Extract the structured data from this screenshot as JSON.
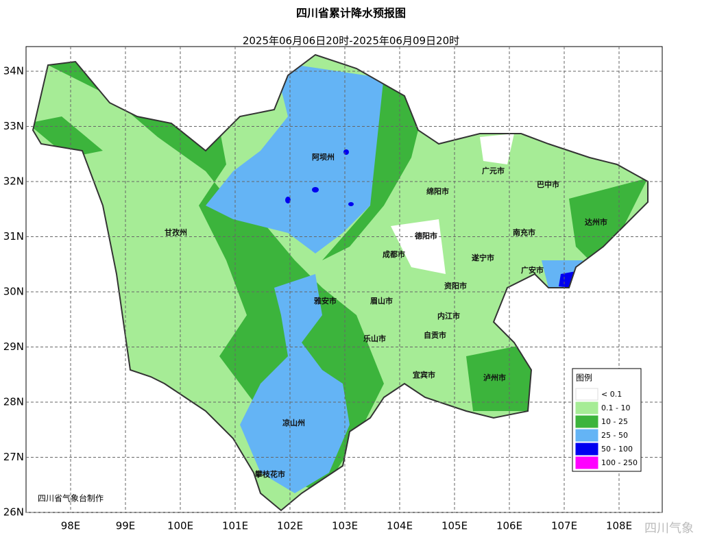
{
  "header": {
    "title": "四川省累计降水预报图",
    "subtitle": "2025年06月06日20时-2025年06月09日20时"
  },
  "map": {
    "xticks": [
      {
        "value": 98,
        "label": "98E"
      },
      {
        "value": 99,
        "label": "99E"
      },
      {
        "value": 100,
        "label": "100E"
      },
      {
        "value": 101,
        "label": "101E"
      },
      {
        "value": 102,
        "label": "102E"
      },
      {
        "value": 103,
        "label": "103E"
      },
      {
        "value": 104,
        "label": "104E"
      },
      {
        "value": 105,
        "label": "105E"
      },
      {
        "value": 106,
        "label": "106E"
      },
      {
        "value": 107,
        "label": "107E"
      },
      {
        "value": 108,
        "label": "108E"
      }
    ],
    "yticks": [
      {
        "value": 34,
        "label": "34N"
      },
      {
        "value": 33,
        "label": "33N"
      },
      {
        "value": 32,
        "label": "32N"
      },
      {
        "value": 31,
        "label": "31N"
      },
      {
        "value": 30,
        "label": "30N"
      },
      {
        "value": 29,
        "label": "29N"
      },
      {
        "value": 28,
        "label": "28N"
      },
      {
        "value": 27,
        "label": "27N"
      },
      {
        "value": 26,
        "label": "26N"
      }
    ],
    "regions": [
      "阿坝州",
      "甘孜州",
      "凉山州",
      "攀枝花市",
      "雅安市",
      "成都市",
      "德阳市",
      "绵阳市",
      "广元市",
      "巴中市",
      "达州市",
      "南充市",
      "遂宁市",
      "广安市",
      "资阳市",
      "眉山市",
      "内江市",
      "乐山市",
      "自贡市",
      "宜宾市",
      "泸州市"
    ]
  },
  "legend": {
    "title": "图例",
    "entries": [
      {
        "label": "< 0.1",
        "color": "#ffffff"
      },
      {
        "label": "0.1 - 10",
        "color": "#a6ec96"
      },
      {
        "label": "10 - 25",
        "color": "#3cb43c"
      },
      {
        "label": "25 - 50",
        "color": "#64b4f5"
      },
      {
        "label": "50 - 100",
        "color": "#0000f0"
      },
      {
        "label": "100 - 250",
        "color": "#ff00ff"
      }
    ]
  },
  "credit": "四川省气象台制作",
  "watermark": "四川气象"
}
